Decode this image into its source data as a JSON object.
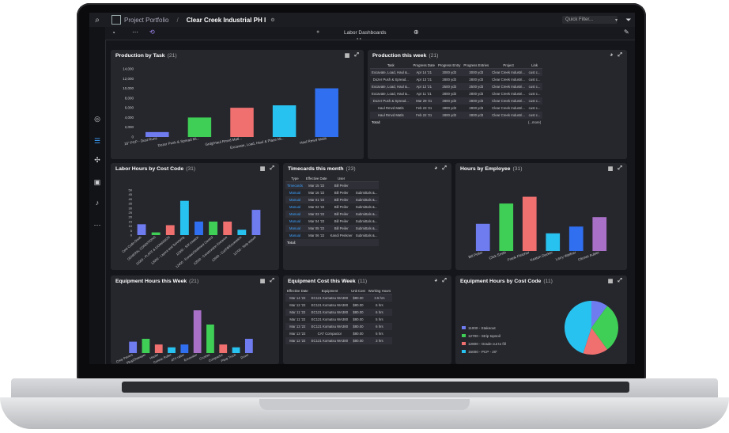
{
  "topbar": {
    "app_name": "Project Portfolio",
    "project": "Clear Creek Industrial PH I",
    "quick_filter": "Quick Filter..."
  },
  "subbar": {
    "dashboard_title": "Labor Dashboards"
  },
  "production_by_task": {
    "title": "Production by Task",
    "count": "(21)",
    "chart_data": {
      "type": "bar",
      "categories": [
        "16\" PCP - Dust Runs",
        "Dozer Push & Spread Mi...",
        "Grdg/Haul Rmvd Matl...",
        "Excavate, Load, Haul & Place Mi...",
        "Haul Rmvd Matls"
      ],
      "values": [
        1000,
        4000,
        6000,
        6500,
        10000
      ],
      "yticks": [
        "0",
        "2,000",
        "4,000",
        "6,000",
        "8,000",
        "10,000",
        "12,000",
        "14,000"
      ],
      "ylim": [
        0,
        14000
      ],
      "colors": [
        "#6f7cf0",
        "#3fcf56",
        "#f07070",
        "#28c2f0",
        "#2f6ff0"
      ]
    }
  },
  "production_week": {
    "title": "Production this week",
    "count": "(21)",
    "headers": [
      "Task",
      "Progress Date",
      "Progress Entry",
      "Progress Entries",
      "Project",
      "Link"
    ],
    "rows": [
      [
        "Excavate, Load, Haul &...",
        "Apr 14 '21",
        "3000 yd3",
        "3000 yd3",
        "Clear Creek Industri...",
        "cust c..."
      ],
      [
        "Dozer Push & Spread...",
        "Apr 13 '21",
        "2800 yd3",
        "2800 yd3",
        "Clear Creek Industri...",
        "cust c..."
      ],
      [
        "Excavate, Load, Haul &...",
        "Apr 12 '21",
        "2500 yd3",
        "2500 yd3",
        "Clear Creek Industri...",
        "cust c..."
      ],
      [
        "Excavate, Load, Haul &...",
        "Apr 11 '21",
        "2800 yd3",
        "2800 yd3",
        "Clear Creek Industri...",
        "cust c..."
      ],
      [
        "Dozer Push & Spread...",
        "Mar 29 '21",
        "2800 yd3",
        "2800 yd3",
        "Clear Creek Industri...",
        "cust c..."
      ],
      [
        "Haul Rmvd Matls",
        "Feb 23 '21",
        "2800 yd3",
        "2800 yd3",
        "Clear Creek Industri...",
        "cust c..."
      ],
      [
        "Haul Rmvd Matls",
        "Feb 22 '21",
        "2800 yd3",
        "2800 yd3",
        "Clear Creek Industri...",
        "cust c..."
      ]
    ],
    "total": "Total:",
    "more": "(...more)"
  },
  "labor_hours": {
    "title": "Labor Hours by Cost Code",
    "count": "(31)",
    "chart_data": {
      "type": "bar",
      "categories": [
        "Cost Code-Disab",
        "GENERAL CONDITIONS",
        "11000 - PLATE & EXPANSION",
        "12000 - Layout and Surveying",
        "12300 - S/R rotation",
        "12400 - Erosion/Sediment Control",
        "12500 - Construction Entrance",
        "12600 - Cut/Fill/Excavation",
        "12700 - Strip topsoil"
      ],
      "values": [
        12,
        3,
        11,
        38,
        15,
        15,
        15,
        6,
        28
      ],
      "yticks": [
        "0",
        "5",
        "10",
        "15",
        "20",
        "25",
        "30",
        "35",
        "40",
        "45",
        "50"
      ],
      "ylim": [
        0,
        50
      ],
      "colors": [
        "#6f7cf0",
        "#3fcf56",
        "#f07070",
        "#28c2f0",
        "#2f6ff0",
        "#3fcf56",
        "#f07070",
        "#28c2f0",
        "#6f7cf0"
      ]
    }
  },
  "timecards": {
    "title": "Timecards this month",
    "count": "(23)",
    "headers": [
      "Type",
      "Effective Date",
      "User",
      ""
    ],
    "rows": [
      [
        "Timecards",
        "Mar 15 '22",
        "Bill Peiler",
        ""
      ],
      [
        "Manual",
        "Mar 16 '22",
        "Bill Peiler",
        "Submittals &..."
      ],
      [
        "Manual",
        "Mar 01 '22",
        "Bill Peiler",
        "Submittals &..."
      ],
      [
        "Manual",
        "Mar 02 '22",
        "Bill Peiler",
        "Submittals &..."
      ],
      [
        "Manual",
        "Mar 03 '22",
        "Bill Peiler",
        "Submittals &..."
      ],
      [
        "Manual",
        "Mar 04 '22",
        "Bill Peiler",
        "Submittals &..."
      ],
      [
        "Manual",
        "Mar 05 '22",
        "Bill Peiler",
        "Submittals &..."
      ],
      [
        "Manual",
        "Mar 06 '22",
        "Kandi Penkner",
        "Submittals &..."
      ]
    ],
    "total": "Total:"
  },
  "hours_by_employee": {
    "title": "Hours by Employee",
    "count": "(31)",
    "chart_data": {
      "type": "bar",
      "categories": [
        "Bill Peiler",
        "Click Smith",
        "Frank Fletcher",
        "Keaton Decker",
        "Larry Wolfner",
        "Clemet Aubler"
      ],
      "values": [
        20,
        35,
        40,
        13,
        18,
        25
      ],
      "ylim": [
        0,
        45
      ],
      "colors": [
        "#6f7cf0",
        "#3fcf56",
        "#f07070",
        "#28c2f0",
        "#2f6ff0",
        "#a970c8"
      ]
    }
  },
  "equipment_hours": {
    "title": "Equipment Hours this Week",
    "count": "(21)",
    "chart_data": {
      "type": "bar",
      "categories": [
        "Crwy Pavers",
        "Pkup/Sweeper",
        "Hauler",
        "Conrac Roller",
        "ATV rafter",
        "Excavator",
        "Crusher",
        "Compactor",
        "Pkup Truck",
        "Dozer"
      ],
      "values": [
        4,
        5,
        3,
        2,
        3,
        15,
        10,
        3,
        2,
        5
      ],
      "ylim": [
        0,
        20
      ],
      "colors": [
        "#6f7cf0",
        "#3fcf56",
        "#f07070",
        "#28c2f0",
        "#2f6ff0",
        "#a970c8",
        "#3fcf56",
        "#f07070",
        "#28c2f0",
        "#6f7cf0"
      ]
    }
  },
  "equipment_cost": {
    "title": "Equipment Cost this Week",
    "count": "(11)",
    "headers": [
      "Effective Date",
      "Equipment",
      "Unit Cost",
      "Working Hours"
    ],
    "rows": [
      [
        "Mar 14 '22",
        "EC121 Komatsu WA380",
        "$80.00",
        "3.5 hrs"
      ],
      [
        "Mar 12 '22",
        "EC121 Komatsu WA380",
        "$80.00",
        "6 hrs"
      ],
      [
        "Mar 11 '22",
        "EC121 Komatsu WA380",
        "$80.00",
        "6 hrs"
      ],
      [
        "Mar 11 '22",
        "EC121 Komatsu WA380",
        "$80.00",
        "5 hrs"
      ],
      [
        "Mar 13 '22",
        "EC121 Komatsu WA380",
        "$80.00",
        "6 hrs"
      ],
      [
        "Mar 13 '22",
        "CAT Compactor",
        "$80.00",
        "5 hrs"
      ],
      [
        "Mar 12 '22",
        "EC121 Komatsu WA380",
        "$80.00",
        "3 hrs"
      ]
    ]
  },
  "equipment_by_cost_code": {
    "title": "Equipment Hours by Cost Code",
    "count": "(11)",
    "chart_data": {
      "type": "pie",
      "labels": [
        "11000 - Stakeout",
        "12700 - Strip topsoil",
        "12800 - Grade cut to fill",
        "15000 - PCP - 20\""
      ],
      "values": [
        10,
        30,
        15,
        45
      ],
      "colors": [
        "#6f7cf0",
        "#3fcf56",
        "#f07070",
        "#28c2f0"
      ]
    }
  }
}
